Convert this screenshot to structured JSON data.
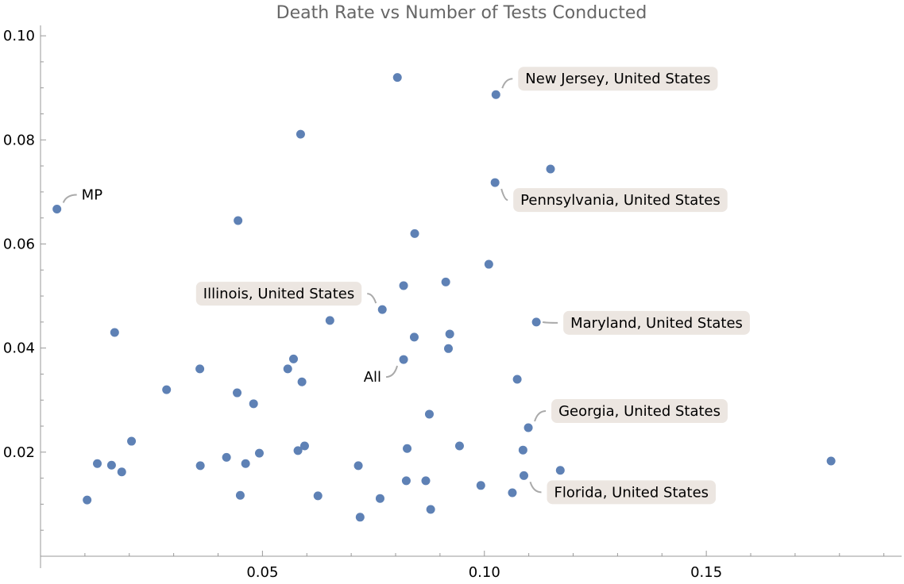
{
  "chart_data": {
    "type": "scatter",
    "title": "Death Rate vs Number of Tests Conducted",
    "xlabel": "",
    "ylabel": "",
    "xlim": [
      0,
      0.194
    ],
    "ylim": [
      0,
      0.102
    ],
    "x_ticks": [
      0.05,
      0.1,
      0.15
    ],
    "x_tick_labels": [
      "0.05",
      "0.10",
      "0.15"
    ],
    "y_ticks": [
      0.02,
      0.04,
      0.06,
      0.08,
      0.1
    ],
    "y_tick_labels": [
      "0.02",
      "0.04",
      "0.06",
      "0.08",
      "0.10"
    ],
    "grid": false,
    "color": "#5e81b5",
    "points": [
      [
        0.0804,
        0.092
      ],
      [
        0.1026,
        0.0887
      ],
      [
        0.0586,
        0.0811
      ],
      [
        0.1149,
        0.0744
      ],
      [
        0.1024,
        0.0718
      ],
      [
        0.0037,
        0.0667
      ],
      [
        0.0445,
        0.0645
      ],
      [
        0.0843,
        0.062
      ],
      [
        0.101,
        0.0561
      ],
      [
        0.0913,
        0.0527
      ],
      [
        0.0818,
        0.052
      ],
      [
        0.077,
        0.0474
      ],
      [
        0.0652,
        0.0453
      ],
      [
        0.1117,
        0.045
      ],
      [
        0.0167,
        0.043
      ],
      [
        0.0922,
        0.0427
      ],
      [
        0.0842,
        0.0421
      ],
      [
        0.0919,
        0.0399
      ],
      [
        0.057,
        0.0379
      ],
      [
        0.0818,
        0.0378
      ],
      [
        0.0359,
        0.036
      ],
      [
        0.0557,
        0.036
      ],
      [
        0.0589,
        0.0335
      ],
      [
        0.1074,
        0.034
      ],
      [
        0.0284,
        0.032
      ],
      [
        0.0443,
        0.0314
      ],
      [
        0.048,
        0.0293
      ],
      [
        0.0876,
        0.0273
      ],
      [
        0.1099,
        0.0247
      ],
      [
        0.0205,
        0.0221
      ],
      [
        0.0944,
        0.0212
      ],
      [
        0.0595,
        0.0212
      ],
      [
        0.058,
        0.0203
      ],
      [
        0.0826,
        0.0207
      ],
      [
        0.1087,
        0.0204
      ],
      [
        0.0493,
        0.0198
      ],
      [
        0.0419,
        0.019
      ],
      [
        0.0128,
        0.0178
      ],
      [
        0.016,
        0.0175
      ],
      [
        0.036,
        0.0174
      ],
      [
        0.0462,
        0.0178
      ],
      [
        0.0716,
        0.0174
      ],
      [
        0.0183,
        0.0162
      ],
      [
        0.1171,
        0.0165
      ],
      [
        0.1781,
        0.0183
      ],
      [
        0.1089,
        0.0155
      ],
      [
        0.0824,
        0.0145
      ],
      [
        0.0868,
        0.0145
      ],
      [
        0.0992,
        0.0136
      ],
      [
        0.1063,
        0.0122
      ],
      [
        0.045,
        0.0117
      ],
      [
        0.0625,
        0.0116
      ],
      [
        0.0765,
        0.0111
      ],
      [
        0.0105,
        0.0108
      ],
      [
        0.0879,
        0.009
      ],
      [
        0.072,
        0.0075
      ]
    ],
    "annotations": [
      {
        "text": "New Jersey, United States",
        "point": 1
      },
      {
        "text": "Pennsylvania, United States",
        "point": 4
      },
      {
        "text": "MP",
        "point": 5
      },
      {
        "text": "Illinois, United States",
        "point": 11
      },
      {
        "text": "Maryland, United States",
        "point": 13
      },
      {
        "text": "All",
        "point": 19
      },
      {
        "text": "Georgia, United States",
        "point": 28
      },
      {
        "text": "Florida, United States",
        "point": 45
      }
    ]
  }
}
